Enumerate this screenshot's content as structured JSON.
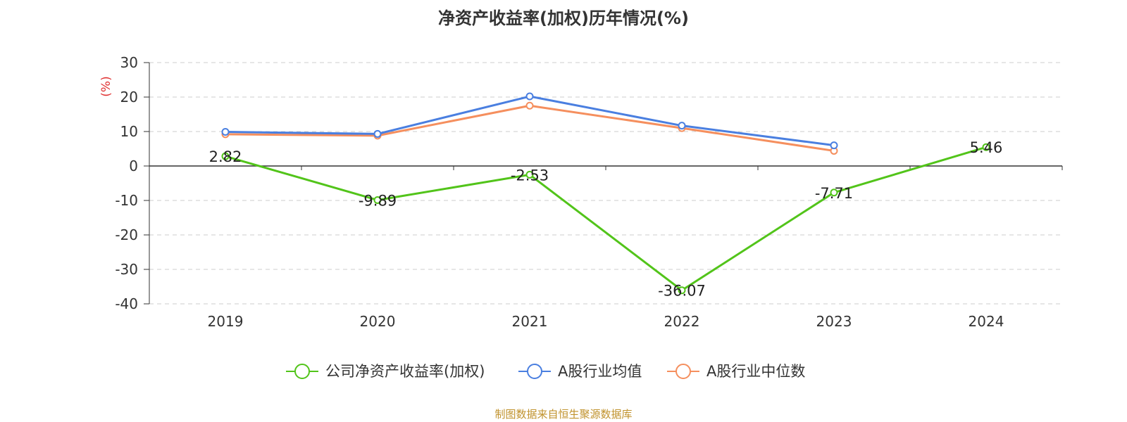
{
  "chart_data": {
    "type": "line",
    "title": "净资产收益率(加权)历年情况(%)",
    "ylabel": "(%)",
    "categories": [
      "2019",
      "2020",
      "2021",
      "2022",
      "2023",
      "2024"
    ],
    "ylim": [
      -40,
      30
    ],
    "yticks": [
      30,
      20,
      10,
      0,
      -10,
      -20,
      -30,
      -40
    ],
    "grid": true,
    "legend_position": "bottom",
    "series": [
      {
        "name": "公司净资产收益率(加权)",
        "color": "#52c41a",
        "values": [
          2.82,
          -9.89,
          -2.53,
          -36.07,
          -7.71,
          5.46
        ],
        "labels": [
          "2.82",
          "-9.89",
          "-2.53",
          "-36.07",
          "-7.71",
          "5.46"
        ]
      },
      {
        "name": "A股行业均值",
        "color": "#4a7fe0",
        "values": [
          9.9,
          9.3,
          20.2,
          11.7,
          6.0,
          null
        ]
      },
      {
        "name": "A股行业中位数",
        "color": "#f58f5e",
        "values": [
          9.2,
          8.8,
          17.5,
          11.0,
          4.4,
          null
        ]
      }
    ]
  },
  "source": "制图数据来自恒生聚源数据库"
}
